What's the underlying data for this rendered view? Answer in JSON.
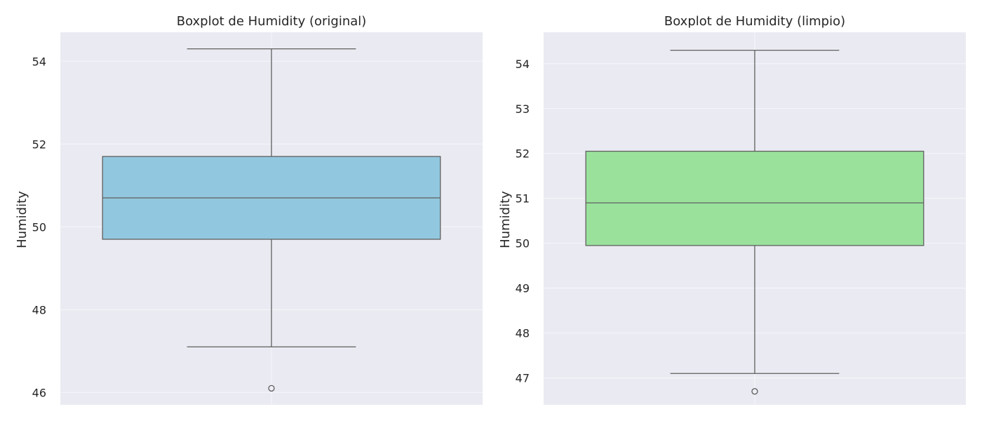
{
  "chart_data": [
    {
      "type": "box",
      "title": "Boxplot de Humidity (original)",
      "xlabel": "",
      "ylabel": "Humidity",
      "ylim": [
        45.7,
        54.7
      ],
      "yticks": [
        46,
        48,
        50,
        52,
        54
      ],
      "ytick_labels": [
        "46",
        "48",
        "50",
        "52",
        "54"
      ],
      "grid": true,
      "box": {
        "whisker_low": 47.1,
        "q1": 49.7,
        "median": 50.7,
        "q3": 51.7,
        "whisker_high": 54.3,
        "outliers": [
          46.1
        ]
      },
      "colors": {
        "box_fill": "#92c8df",
        "line": "#5f5f5f",
        "plot_bg": "#eaeaf2",
        "grid": "#f6f6fa"
      }
    },
    {
      "type": "box",
      "title": "Boxplot de Humidity (limpio)",
      "xlabel": "",
      "ylabel": "Humidity",
      "ylim": [
        46.4,
        54.7
      ],
      "yticks": [
        47,
        48,
        49,
        50,
        51,
        52,
        53,
        54
      ],
      "ytick_labels": [
        "47",
        "48",
        "49",
        "50",
        "51",
        "52",
        "53",
        "54"
      ],
      "grid": true,
      "box": {
        "whisker_low": 47.1,
        "q1": 49.95,
        "median": 50.9,
        "q3": 52.05,
        "whisker_high": 54.3,
        "outliers": [
          46.7
        ]
      },
      "colors": {
        "box_fill": "#9ae29c",
        "line": "#5f5f5f",
        "plot_bg": "#eaeaf2",
        "grid": "#f6f6fa"
      }
    }
  ]
}
